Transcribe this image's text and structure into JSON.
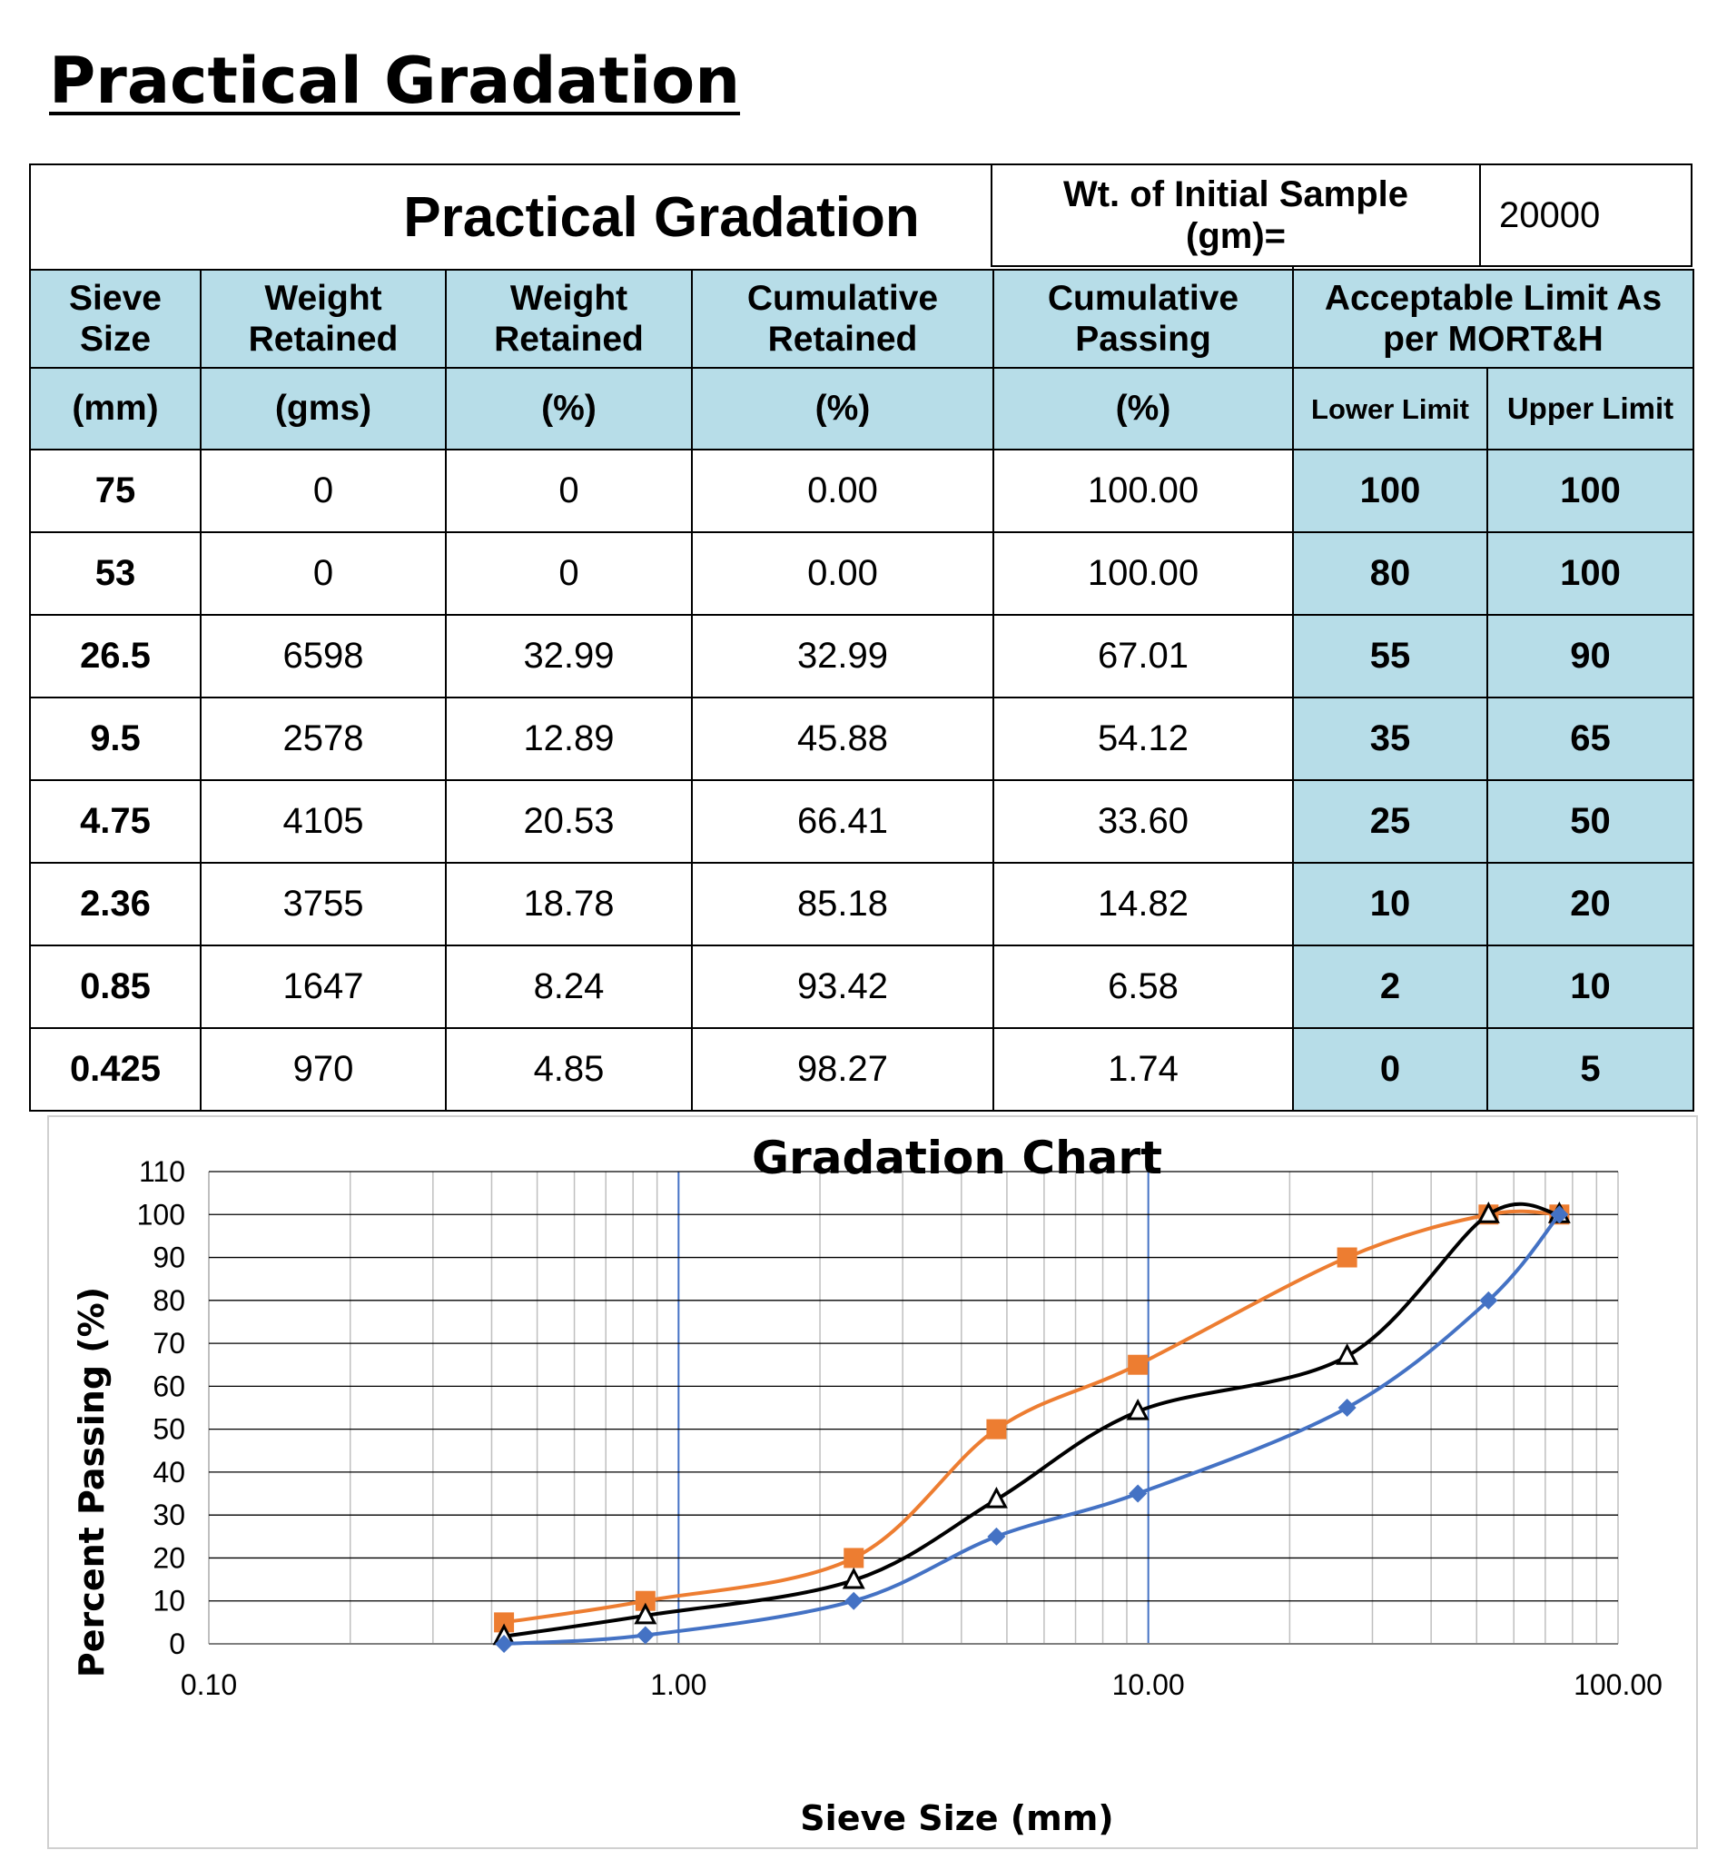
{
  "page_title": "Practical Gradation",
  "table": {
    "title": "Practical Gradation",
    "weight_label": "Wt. of Initial Sample (gm)=",
    "weight_value": "20000",
    "headers": {
      "sieve": "Sieve Size",
      "weight_gms": "Weight Retained",
      "weight_pct": "Weight Retained",
      "cum_retained": "Cumulative Retained",
      "cum_passing": "Cumulative Passing",
      "limits": "Acceptable Limit As per MORT&H"
    },
    "units": {
      "sieve": "(mm)",
      "weight_gms": "(gms)",
      "weight_pct": "(%)",
      "cum_retained": "(%)",
      "cum_passing": "(%)",
      "lower": "Lower Limit",
      "upper": "Upper Limit"
    },
    "rows": [
      {
        "sieve": "75",
        "wt": "0",
        "wtp": "0",
        "cr": "0.00",
        "cp": "100.00",
        "lo": "100",
        "up": "100"
      },
      {
        "sieve": "53",
        "wt": "0",
        "wtp": "0",
        "cr": "0.00",
        "cp": "100.00",
        "lo": "80",
        "up": "100"
      },
      {
        "sieve": "26.5",
        "wt": "6598",
        "wtp": "32.99",
        "cr": "32.99",
        "cp": "67.01",
        "lo": "55",
        "up": "90"
      },
      {
        "sieve": "9.5",
        "wt": "2578",
        "wtp": "12.89",
        "cr": "45.88",
        "cp": "54.12",
        "lo": "35",
        "up": "65"
      },
      {
        "sieve": "4.75",
        "wt": "4105",
        "wtp": "20.53",
        "cr": "66.41",
        "cp": "33.60",
        "lo": "25",
        "up": "50"
      },
      {
        "sieve": "2.36",
        "wt": "3755",
        "wtp": "18.78",
        "cr": "85.18",
        "cp": "14.82",
        "lo": "10",
        "up": "20"
      },
      {
        "sieve": "0.85",
        "wt": "1647",
        "wtp": "8.24",
        "cr": "93.42",
        "cp": "6.58",
        "lo": "2",
        "up": "10"
      },
      {
        "sieve": "0.425",
        "wt": "970",
        "wtp": "4.85",
        "cr": "98.27",
        "cp": "1.74",
        "lo": "0",
        "up": "5"
      }
    ]
  },
  "chart_data": {
    "type": "line",
    "title": "Gradation Chart",
    "xlabel": "Sieve Size (mm)",
    "ylabel": "Percent Passing (%)",
    "x_scale": "log",
    "xlim": [
      0.1,
      100
    ],
    "ylim": [
      0,
      110
    ],
    "x_tick_labels": [
      "0.10",
      "1.00",
      "10.00",
      "100.00"
    ],
    "y_ticks": [
      0,
      10,
      20,
      30,
      40,
      50,
      60,
      70,
      80,
      90,
      100,
      110
    ],
    "grid": true,
    "legend": "none",
    "x": [
      75,
      53,
      26.5,
      9.5,
      4.75,
      2.36,
      0.85,
      0.425
    ],
    "series": [
      {
        "values": [
          100,
          100,
          90,
          65,
          50,
          20,
          10,
          5
        ],
        "color": "#ed7d31",
        "marker": "square"
      },
      {
        "values": [
          100,
          100,
          67.01,
          54.12,
          33.6,
          14.82,
          6.58,
          1.74
        ],
        "color": "#000000",
        "marker": "triangle"
      },
      {
        "values": [
          100,
          80,
          55,
          35,
          25,
          10,
          2,
          0
        ],
        "color": "#4472c4",
        "marker": "diamond"
      }
    ]
  }
}
